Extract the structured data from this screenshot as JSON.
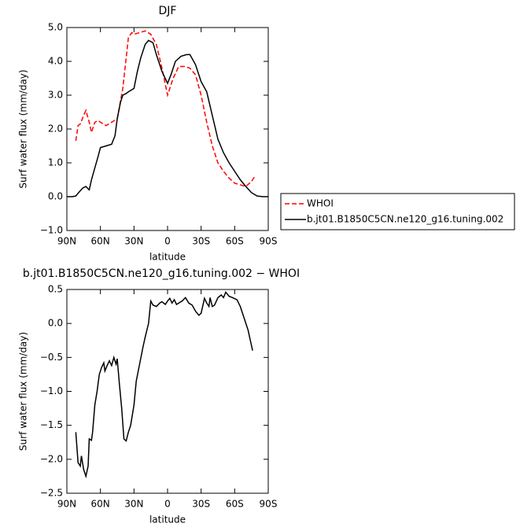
{
  "chart_data": [
    {
      "type": "line",
      "title": "DJF",
      "ylabel": "Surf water flux (mm/day)",
      "xlabel": "latitude",
      "xlim": [
        90,
        -90
      ],
      "ylim": [
        -1,
        5
      ],
      "xticks": [
        {
          "value": 90,
          "label": "90N"
        },
        {
          "value": 60,
          "label": "60N"
        },
        {
          "value": 30,
          "label": "30N"
        },
        0,
        {
          "value": -30,
          "label": "30S"
        },
        {
          "value": -60,
          "label": "60S"
        },
        {
          "value": -90,
          "label": "90S"
        }
      ],
      "yticks": [
        {
          "value": -1,
          "label": "−1.0"
        },
        {
          "value": 0,
          "label": "0.0"
        },
        {
          "value": 1,
          "label": "1.0"
        },
        {
          "value": 2,
          "label": "2.0"
        },
        {
          "value": 3,
          "label": "3.0"
        },
        {
          "value": 4,
          "label": "4.0"
        },
        {
          "value": 5,
          "label": "5.0"
        }
      ],
      "legend": "right",
      "series": [
        {
          "name": "WHOI",
          "color": "#ff0000",
          "style": "dashed",
          "x": [
            82,
            80,
            78,
            75,
            73,
            70,
            68,
            65,
            62,
            60,
            55,
            50,
            45,
            40,
            37,
            35,
            32,
            30,
            25,
            20,
            15,
            10,
            5,
            0,
            -5,
            -10,
            -15,
            -20,
            -25,
            -30,
            -35,
            -40,
            -45,
            -50,
            -55,
            -60,
            -65,
            -70,
            -75,
            -78
          ],
          "values": [
            1.65,
            2.1,
            2.15,
            2.4,
            2.55,
            2.2,
            1.9,
            2.2,
            2.25,
            2.2,
            2.1,
            2.2,
            2.3,
            3.2,
            4.1,
            4.7,
            4.85,
            4.8,
            4.85,
            4.9,
            4.8,
            4.5,
            3.8,
            3.0,
            3.5,
            3.85,
            3.85,
            3.8,
            3.6,
            3.0,
            2.2,
            1.5,
            1.0,
            0.75,
            0.55,
            0.4,
            0.35,
            0.3,
            0.45,
            0.6
          ]
        },
        {
          "name": "b.jt01.B1850C5CN.ne120_g16.tuning.002",
          "color": "#000000",
          "style": "solid",
          "x": [
            90,
            85,
            82,
            80,
            76,
            73,
            70,
            68,
            65,
            62,
            60,
            55,
            50,
            47,
            45,
            42,
            40,
            37,
            35,
            30,
            27,
            24,
            20,
            17,
            13,
            10,
            5,
            0,
            -3,
            -7,
            -12,
            -17,
            -20,
            -25,
            -30,
            -35,
            -40,
            -45,
            -50,
            -55,
            -60,
            -65,
            -70,
            -75,
            -80,
            -85,
            -90
          ],
          "values": [
            0,
            0,
            0.02,
            0.1,
            0.25,
            0.3,
            0.2,
            0.5,
            0.85,
            1.2,
            1.45,
            1.5,
            1.55,
            1.8,
            2.3,
            2.8,
            3.0,
            3.05,
            3.1,
            3.2,
            3.7,
            4.1,
            4.5,
            4.62,
            4.55,
            4.2,
            3.7,
            3.35,
            3.6,
            4.0,
            4.15,
            4.2,
            4.2,
            3.9,
            3.4,
            3.1,
            2.4,
            1.7,
            1.3,
            1.0,
            0.75,
            0.5,
            0.3,
            0.12,
            0.02,
            0,
            0
          ]
        }
      ]
    },
    {
      "type": "line",
      "title": "b.jt01.B1850C5CN.ne120_g16.tuning.002 − WHOI",
      "ylabel": "Surf water flux (mm/day)",
      "xlabel": "latitude",
      "xlim": [
        90,
        -90
      ],
      "ylim": [
        -2.5,
        0.5
      ],
      "xticks": [
        {
          "value": 90,
          "label": "90N"
        },
        {
          "value": 60,
          "label": "60N"
        },
        {
          "value": 30,
          "label": "30N"
        },
        0,
        {
          "value": -30,
          "label": "30S"
        },
        {
          "value": -60,
          "label": "60S"
        },
        {
          "value": -90,
          "label": "90S"
        }
      ],
      "yticks": [
        {
          "value": -2.5,
          "label": "−2.5"
        },
        {
          "value": -2,
          "label": "−2.0"
        },
        {
          "value": -1.5,
          "label": "−1.5"
        },
        {
          "value": -1,
          "label": "−1.0"
        },
        {
          "value": -0.5,
          "label": "−0.5"
        },
        {
          "value": 0,
          "label": "0.0"
        },
        0.5
      ],
      "series": [
        {
          "color": "#000000",
          "style": "solid",
          "x": [
            82,
            80,
            78,
            77,
            75,
            73,
            71,
            70,
            68,
            67,
            65,
            63,
            61,
            59,
            57,
            56,
            54,
            52,
            50,
            48,
            46,
            45,
            43,
            41,
            39,
            37,
            35,
            33,
            30,
            28,
            25,
            22,
            20,
            17,
            15,
            13,
            10,
            7,
            5,
            2,
            0,
            -2,
            -4,
            -6,
            -8,
            -10,
            -13,
            -16,
            -19,
            -22,
            -25,
            -28,
            -30,
            -33,
            -35,
            -37,
            -38,
            -40,
            -42,
            -45,
            -48,
            -50,
            -52,
            -55,
            -58,
            -62,
            -65,
            -68,
            -70,
            -72,
            -74,
            -76
          ],
          "values": [
            -1.6,
            -2.05,
            -2.1,
            -1.95,
            -2.15,
            -2.25,
            -2.1,
            -1.7,
            -1.72,
            -1.6,
            -1.2,
            -1.0,
            -0.75,
            -0.65,
            -0.58,
            -0.7,
            -0.62,
            -0.55,
            -0.62,
            -0.5,
            -0.6,
            -0.52,
            -0.9,
            -1.25,
            -1.7,
            -1.73,
            -1.6,
            -1.5,
            -1.2,
            -0.85,
            -0.6,
            -0.35,
            -0.2,
            0.0,
            0.33,
            0.27,
            0.25,
            0.3,
            0.32,
            0.28,
            0.33,
            0.37,
            0.3,
            0.35,
            0.28,
            0.3,
            0.33,
            0.38,
            0.3,
            0.27,
            0.18,
            0.12,
            0.15,
            0.37,
            0.3,
            0.25,
            0.38,
            0.25,
            0.27,
            0.38,
            0.42,
            0.38,
            0.46,
            0.4,
            0.38,
            0.35,
            0.25,
            0.1,
            0.0,
            -0.1,
            -0.25,
            -0.4
          ]
        }
      ]
    }
  ]
}
